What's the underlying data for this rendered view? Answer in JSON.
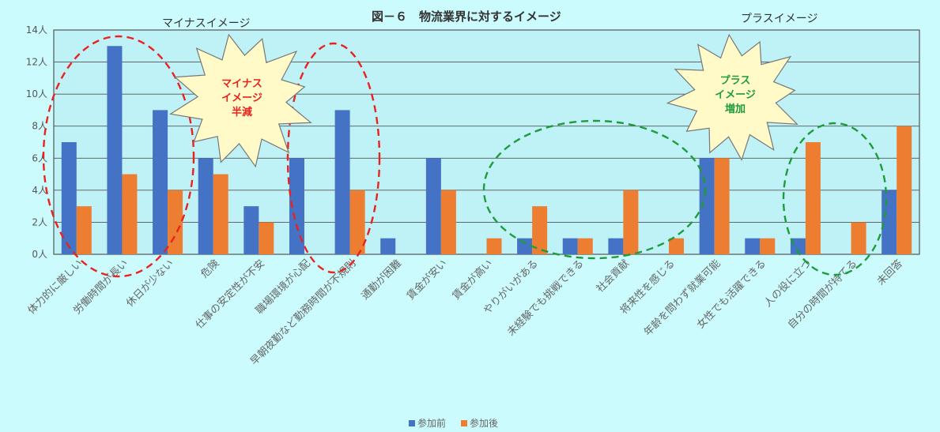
{
  "chart_data": {
    "type": "bar",
    "title": "図－６　物流業界に対するイメージ",
    "minus_header": "マイナスイメージ",
    "plus_header": "プラスイメージ",
    "categories": [
      "体力的に厳しい",
      "労働時間が長い",
      "休日が少ない",
      "危険",
      "仕事の安定性が不安",
      "職場環境が心配",
      "早朝夜勤など勤務時間が不規則",
      "通勤が困難",
      "賃金が安い",
      "賃金が高い",
      "やりがいがある",
      "未経験でも挑戦できる",
      "社会貢献",
      "将来性を感じる",
      "年齢を問わず就業可能",
      "女性でも活躍できる",
      "人の役に立つ",
      "自分の時間が持てる",
      "未回答"
    ],
    "series": [
      {
        "name": "参加前",
        "color": "#4472c4",
        "values": [
          7,
          13,
          9,
          6,
          3,
          6,
          9,
          1,
          6,
          0,
          1,
          1,
          1,
          0,
          6,
          1,
          1,
          0,
          4
        ]
      },
      {
        "name": "参加後",
        "color": "#ed7d31",
        "values": [
          3,
          5,
          4,
          5,
          2,
          0,
          4,
          0,
          4,
          1,
          3,
          1,
          4,
          1,
          6,
          1,
          7,
          2,
          8
        ]
      }
    ],
    "ylim": [
      0,
      14
    ],
    "yticks": [
      "0人",
      "2人",
      "4人",
      "6人",
      "8人",
      "10人",
      "12人",
      "14人"
    ],
    "grid": true,
    "legend_position": "bottom",
    "annotations": [
      {
        "text_lines": [
          "マイナス",
          "イメージ",
          "半減"
        ],
        "color": "#e8231f"
      },
      {
        "text_lines": [
          "プラス",
          "イメージ",
          "増加"
        ],
        "color": "#1e9c3c"
      }
    ]
  }
}
